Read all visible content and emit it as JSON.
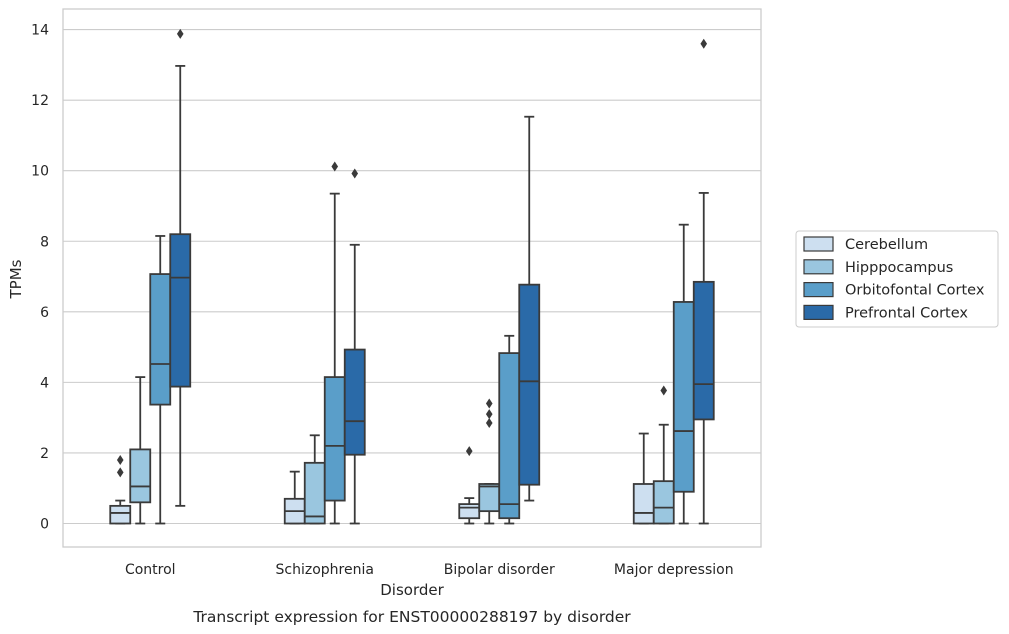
{
  "chart_data": {
    "type": "box",
    "caption": "Transcript expression for ENST00000288197 by disorder",
    "xlabel": "Disorder",
    "ylabel": "TPMs",
    "ylim": [
      -0.65,
      14.6
    ],
    "yticks": [
      0,
      2,
      4,
      6,
      8,
      10,
      12,
      14
    ],
    "grid": "horizontal",
    "legend_position": "right",
    "categories": [
      "Control",
      "Schizophrenia",
      "Bipolar disorder",
      "Major depression"
    ],
    "series": [
      {
        "name": "Cerebellum",
        "color": "#cddff0",
        "boxes": [
          {
            "whisker_low": 0.0,
            "q1": 0.0,
            "median": 0.3,
            "q3": 0.5,
            "whisker_high": 0.65,
            "outliers": [
              1.45,
              1.8
            ]
          },
          {
            "whisker_low": 0.0,
            "q1": 0.0,
            "median": 0.35,
            "q3": 0.7,
            "whisker_high": 1.47,
            "outliers": []
          },
          {
            "whisker_low": 0.0,
            "q1": 0.15,
            "median": 0.45,
            "q3": 0.55,
            "whisker_high": 0.72,
            "outliers": [
              2.05
            ]
          },
          {
            "whisker_low": 0.0,
            "q1": 0.0,
            "median": 0.3,
            "q3": 1.12,
            "whisker_high": 2.55,
            "outliers": []
          }
        ]
      },
      {
        "name": "Hipppocampus",
        "color": "#9ac6df",
        "boxes": [
          {
            "whisker_low": 0.0,
            "q1": 0.6,
            "median": 1.05,
            "q3": 2.1,
            "whisker_high": 4.15,
            "outliers": []
          },
          {
            "whisker_low": 0.0,
            "q1": 0.0,
            "median": 0.2,
            "q3": 1.72,
            "whisker_high": 2.5,
            "outliers": []
          },
          {
            "whisker_low": 0.0,
            "q1": 0.35,
            "median": 1.05,
            "q3": 1.12,
            "whisker_high": 1.12,
            "outliers": [
              2.85,
              3.1,
              3.4
            ]
          },
          {
            "whisker_low": 0.0,
            "q1": 0.0,
            "median": 0.45,
            "q3": 1.2,
            "whisker_high": 2.8,
            "outliers": [
              3.77
            ]
          }
        ]
      },
      {
        "name": "Orbitofontal Cortex",
        "color": "#5a9ec9",
        "boxes": [
          {
            "whisker_low": 0.0,
            "q1": 3.37,
            "median": 4.52,
            "q3": 7.07,
            "whisker_high": 8.15,
            "outliers": []
          },
          {
            "whisker_low": 0.0,
            "q1": 0.65,
            "median": 2.2,
            "q3": 4.15,
            "whisker_high": 9.35,
            "outliers": [
              10.12
            ]
          },
          {
            "whisker_low": 0.0,
            "q1": 0.15,
            "median": 0.55,
            "q3": 4.83,
            "whisker_high": 5.32,
            "outliers": []
          },
          {
            "whisker_low": 0.0,
            "q1": 0.9,
            "median": 2.62,
            "q3": 6.28,
            "whisker_high": 8.47,
            "outliers": []
          }
        ]
      },
      {
        "name": "Prefrontal Cortex",
        "color": "#2a6aa8",
        "boxes": [
          {
            "whisker_low": 0.5,
            "q1": 3.88,
            "median": 6.97,
            "q3": 8.2,
            "whisker_high": 12.97,
            "outliers": [
              13.88
            ]
          },
          {
            "whisker_low": 0.0,
            "q1": 1.95,
            "median": 2.9,
            "q3": 4.93,
            "whisker_high": 7.9,
            "outliers": [
              9.92
            ]
          },
          {
            "whisker_low": 0.65,
            "q1": 1.1,
            "median": 4.03,
            "q3": 6.77,
            "whisker_high": 11.53,
            "outliers": []
          },
          {
            "whisker_low": 0.0,
            "q1": 2.95,
            "median": 3.95,
            "q3": 6.85,
            "whisker_high": 9.37,
            "outliers": [
              13.6
            ]
          }
        ]
      }
    ]
  }
}
